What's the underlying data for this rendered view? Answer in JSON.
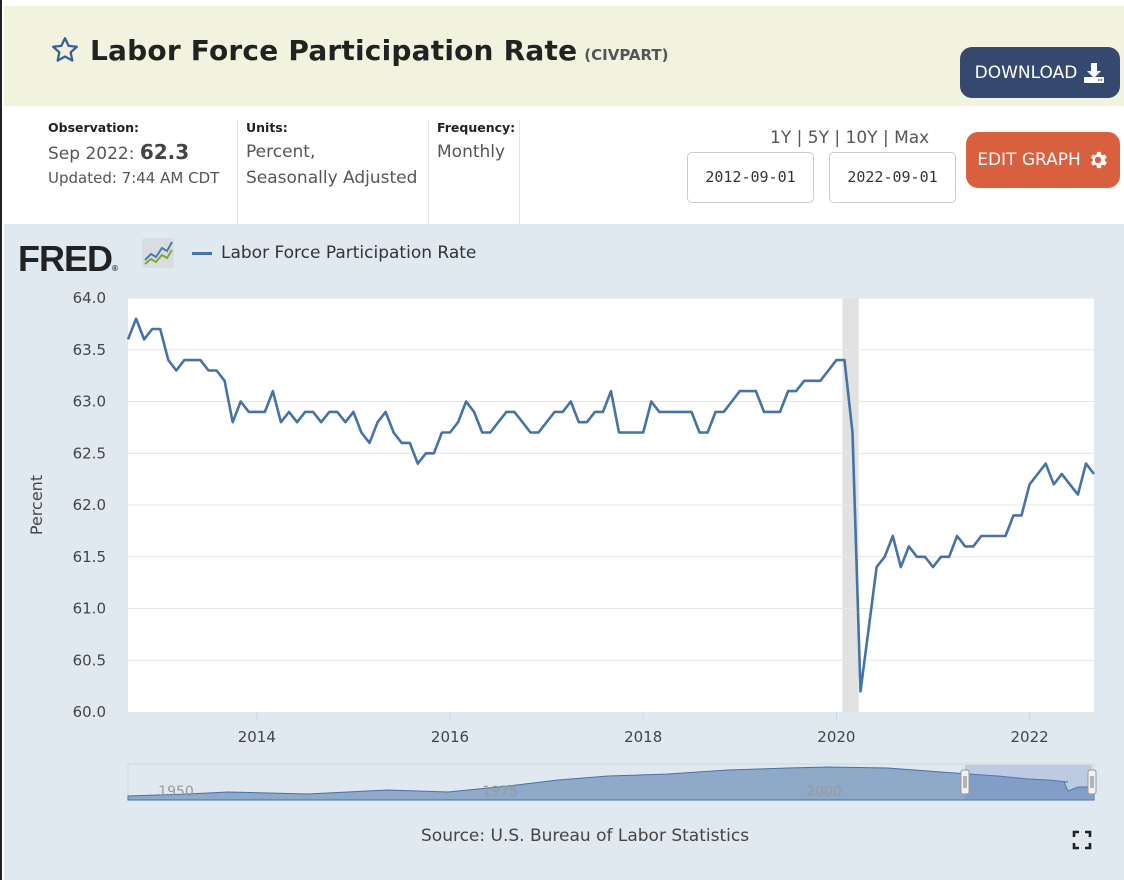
{
  "header": {
    "title": "Labor Force Participation Rate",
    "series_id": "(CIVPART)",
    "download_label": "DOWNLOAD",
    "star_icon": "star-outline-icon",
    "download_icon": "download-icon"
  },
  "meta": {
    "observation_label": "Observation:",
    "observation_date": "Sep 2022:",
    "observation_value": "62.3",
    "updated": "Updated: 7:44 AM CDT",
    "units_label": "Units:",
    "units_line1": "Percent,",
    "units_line2": "Seasonally Adjusted",
    "frequency_label": "Frequency:",
    "frequency_value": "Monthly"
  },
  "controls": {
    "range_1y": "1Y",
    "range_5y": "5Y",
    "range_10y": "10Y",
    "range_max": "Max",
    "separator": "|",
    "start_date": "2012-09-01",
    "end_date": "2022-09-01",
    "edit_graph_label": "EDIT GRAPH",
    "edit_icon": "gear-icon"
  },
  "graph": {
    "logo_text": "FRED",
    "logo_registered": "®",
    "legend_label": "Labor Force Participation Rate",
    "source": "Source: U.S. Bureau of Labor Statistics",
    "navigator_labels": [
      "1950",
      "1975",
      "2000"
    ],
    "accent_color": "#4572a7",
    "recession_color": "#e1e1e1"
  },
  "chart_data": {
    "type": "line",
    "title": "Labor Force Participation Rate",
    "xlabel": "",
    "ylabel": "Percent",
    "ylim": [
      60.0,
      64.0
    ],
    "yticks": [
      "64.0",
      "63.5",
      "63.0",
      "62.5",
      "62.0",
      "61.5",
      "61.0",
      "60.5",
      "60.0"
    ],
    "xticks": [
      "2014",
      "2016",
      "2018",
      "2020",
      "2022"
    ],
    "xrange": [
      "2012-09",
      "2022-09"
    ],
    "grid": true,
    "legend": "top-left",
    "recession_shading": {
      "start": "2020-02",
      "end": "2020-04"
    },
    "start": "2012-09",
    "frequency": "monthly",
    "series": [
      {
        "name": "Labor Force Participation Rate",
        "color": "#4572a7",
        "values": [
          63.6,
          63.8,
          63.6,
          63.7,
          63.7,
          63.4,
          63.3,
          63.4,
          63.4,
          63.4,
          63.3,
          63.3,
          63.2,
          62.8,
          63.0,
          62.9,
          62.9,
          62.9,
          63.1,
          62.8,
          62.9,
          62.8,
          62.9,
          62.9,
          62.8,
          62.9,
          62.9,
          62.8,
          62.9,
          62.7,
          62.6,
          62.8,
          62.9,
          62.7,
          62.6,
          62.6,
          62.4,
          62.5,
          62.5,
          62.7,
          62.7,
          62.8,
          63.0,
          62.9,
          62.7,
          62.7,
          62.8,
          62.9,
          62.9,
          62.8,
          62.7,
          62.7,
          62.8,
          62.9,
          62.9,
          63.0,
          62.8,
          62.8,
          62.9,
          62.9,
          63.1,
          62.7,
          62.7,
          62.7,
          62.7,
          63.0,
          62.9,
          62.9,
          62.9,
          62.9,
          62.9,
          62.7,
          62.7,
          62.9,
          62.9,
          63.0,
          63.1,
          63.1,
          63.1,
          62.9,
          62.9,
          62.9,
          63.1,
          63.1,
          63.2,
          63.2,
          63.2,
          63.3,
          63.4,
          63.4,
          62.7,
          60.2,
          60.8,
          61.4,
          61.5,
          61.7,
          61.4,
          61.6,
          61.5,
          61.5,
          61.4,
          61.5,
          61.5,
          61.7,
          61.6,
          61.6,
          61.7,
          61.7,
          61.7,
          61.7,
          61.9,
          61.9,
          62.2,
          62.3,
          62.4,
          62.2,
          62.3,
          62.2,
          62.1,
          62.4,
          62.3
        ]
      }
    ]
  }
}
